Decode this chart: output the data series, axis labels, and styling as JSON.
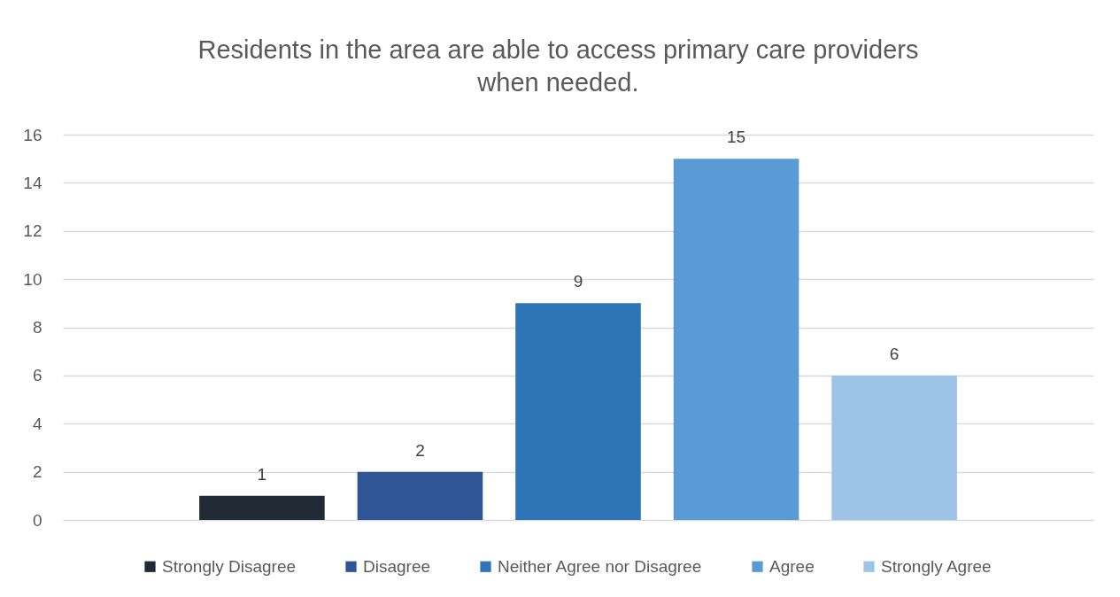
{
  "chart_data": {
    "type": "bar",
    "title": "Residents in the area are able to access primary care providers when needed.",
    "categories": [
      null
    ],
    "series": [
      {
        "name": "Strongly Disagree",
        "color": "#222a35",
        "values": [
          1
        ]
      },
      {
        "name": "Disagree",
        "color": "#2f5597",
        "values": [
          2
        ]
      },
      {
        "name": "Neither Agree nor Disagree",
        "color": "#2e75b6",
        "values": [
          9
        ]
      },
      {
        "name": "Agree",
        "color": "#5b9bd5",
        "values": [
          15
        ]
      },
      {
        "name": "Strongly Agree",
        "color": "#9dc3e6",
        "values": [
          6
        ]
      }
    ],
    "ylim": [
      0,
      16
    ],
    "yticks": [
      0,
      2,
      4,
      6,
      8,
      10,
      12,
      14,
      16
    ],
    "grid": "y",
    "legend": "bottom",
    "tick_labels": "y",
    "data_labels": true
  }
}
